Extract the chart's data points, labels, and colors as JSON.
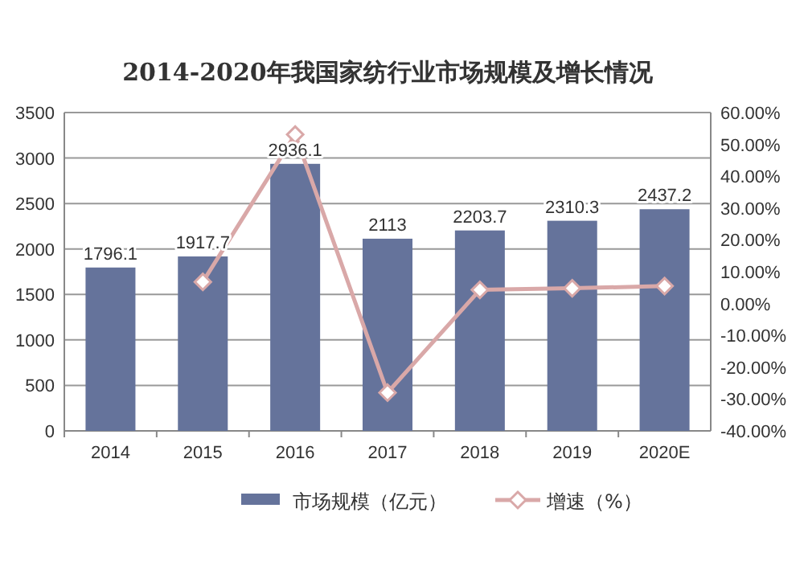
{
  "chart_data": {
    "type": "bar",
    "title": "2014-2020年我国家纺行业市场规模及增长情况",
    "categories": [
      "2014",
      "2015",
      "2016",
      "2017",
      "2018",
      "2019",
      "2020E"
    ],
    "series": [
      {
        "name": "市场规模（亿元）",
        "color": "#65739b",
        "values": [
          1796.1,
          1917.7,
          2936.1,
          2113,
          2203.7,
          2310.3,
          2437.2
        ],
        "data_labels": true
      },
      {
        "name": "增速（%）",
        "type": "line",
        "axis": "y2",
        "color": "#d9a8a8",
        "marker": "diamond",
        "values": [
          null,
          6.8,
          53.1,
          -28.0,
          4.3,
          4.8,
          5.5
        ]
      }
    ],
    "ylim": [
      0,
      3500
    ],
    "yticks": [
      0,
      500,
      1000,
      1500,
      2000,
      2500,
      3000,
      3500
    ],
    "y2lim": [
      -40,
      60
    ],
    "y2ticks": [
      {
        "value": -40,
        "label": "-40.00%"
      },
      {
        "value": -30,
        "label": "-30.00%"
      },
      {
        "value": -20,
        "label": "-20.00%"
      },
      {
        "value": -10,
        "label": "-10.00%"
      },
      {
        "value": 0,
        "label": "0.00%"
      },
      {
        "value": 10,
        "label": "10.00%"
      },
      {
        "value": 20,
        "label": "20.00%"
      },
      {
        "value": 30,
        "label": "30.00%"
      },
      {
        "value": 40,
        "label": "40.00%"
      },
      {
        "value": 50,
        "label": "50.00%"
      },
      {
        "value": 60,
        "label": "60.00%"
      }
    ],
    "grid": "y",
    "legend": "bottom"
  }
}
